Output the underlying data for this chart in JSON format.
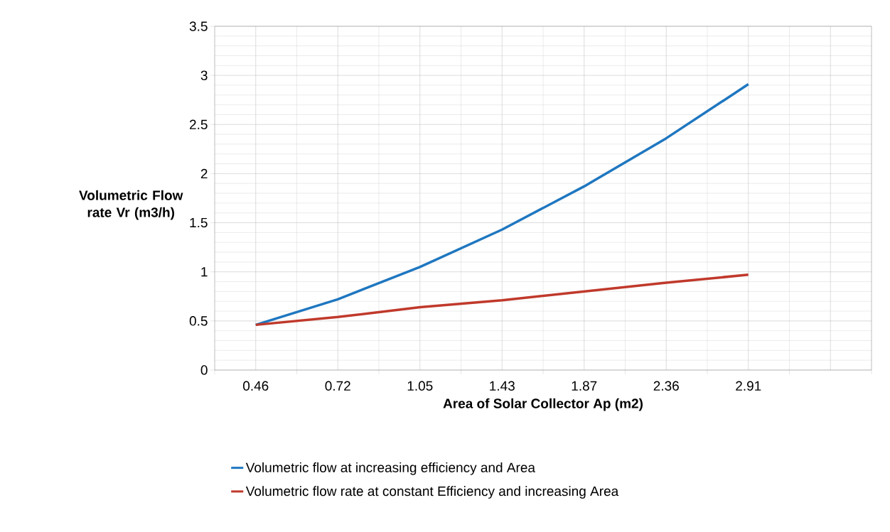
{
  "chart_data": {
    "type": "line",
    "xlabel": "Area of Solar Collector Ap (m2)",
    "ylabel": "Volumetric Flow rate Vr (m3/h)",
    "categories": [
      "0.46",
      "0.72",
      "1.05",
      "1.43",
      "1.87",
      "2.36",
      "2.91",
      null
    ],
    "series": [
      {
        "name": "Volumetric flow at increasing efficiency and Area",
        "color": "#1f77c0",
        "values": [
          0.46,
          0.72,
          1.05,
          1.43,
          1.87,
          2.36,
          2.91,
          null
        ]
      },
      {
        "name": "Volumetric flow rate at constant Efficiency and increasing Area",
        "color": "#c0392b",
        "values": [
          0.46,
          0.54,
          0.64,
          0.71,
          0.8,
          0.89,
          0.97,
          null
        ]
      }
    ],
    "ylim": [
      0,
      3.5
    ],
    "yticks": [
      0,
      0.5,
      1,
      1.5,
      2,
      2.5,
      3,
      3.5
    ],
    "grid": true,
    "legend": "bottom",
    "marker": "none",
    "line_style": "solid"
  }
}
